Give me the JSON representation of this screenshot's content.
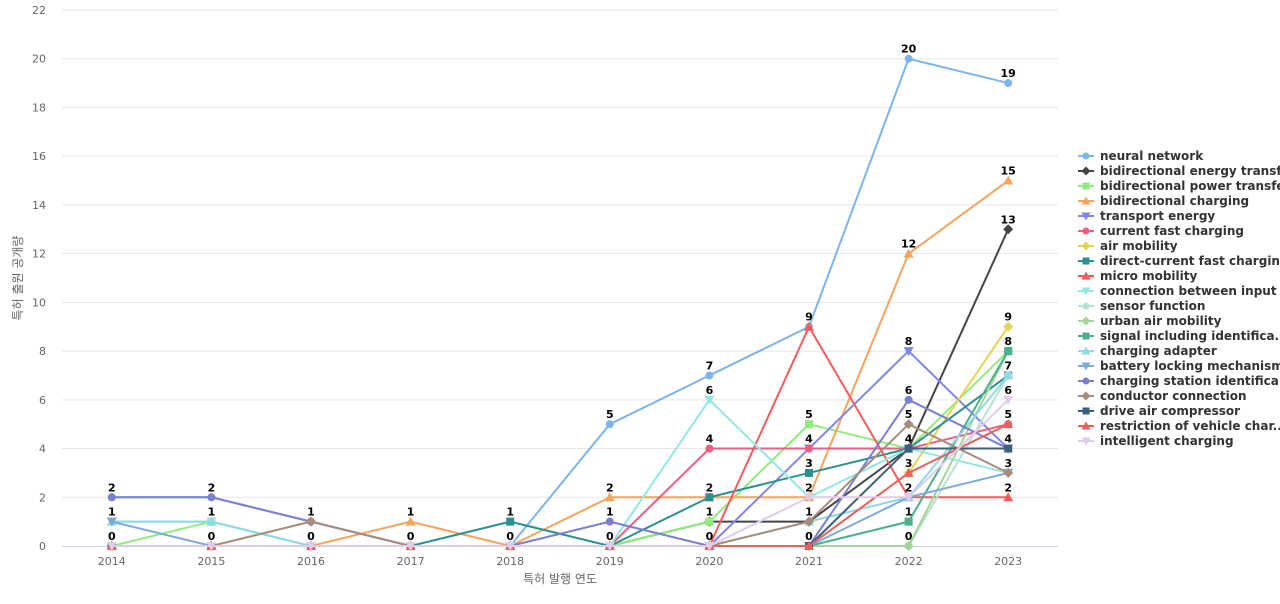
{
  "chart_data": {
    "type": "line",
    "xlabel": "특허 발행 연도",
    "ylabel": "특허 출원 공개량",
    "ylim": [
      0,
      22
    ],
    "yticks": [
      0,
      2,
      4,
      6,
      8,
      10,
      12,
      14,
      16,
      18,
      20,
      22
    ],
    "grid": true,
    "legend_position": "right",
    "categories": [
      "2014",
      "2015",
      "2016",
      "2017",
      "2018",
      "2019",
      "2020",
      "2021",
      "2022",
      "2023"
    ],
    "series": [
      {
        "name": "neural network",
        "color": "#7cb5ec",
        "marker": "circle",
        "values": [
          2,
          2,
          1,
          0,
          0,
          5,
          7,
          9,
          20,
          19
        ]
      },
      {
        "name": "bidirectional energy transfer",
        "color": "#434348",
        "marker": "diamond",
        "values": [
          0,
          0,
          0,
          0,
          0,
          0,
          1,
          1,
          4,
          13
        ]
      },
      {
        "name": "bidirectional power transfer",
        "color": "#90ed7d",
        "marker": "square",
        "values": [
          0,
          1,
          0,
          0,
          0,
          0,
          1,
          5,
          4,
          8
        ]
      },
      {
        "name": "bidirectional charging",
        "color": "#f7a35c",
        "marker": "triangle",
        "values": [
          0,
          0,
          0,
          1,
          0,
          2,
          2,
          2,
          12,
          15
        ]
      },
      {
        "name": "transport energy",
        "color": "#8085e9",
        "marker": "triangle-down",
        "values": [
          0,
          0,
          0,
          0,
          0,
          0,
          0,
          4,
          8,
          4
        ]
      },
      {
        "name": "current fast charging",
        "color": "#f15c80",
        "marker": "circle",
        "values": [
          0,
          0,
          0,
          0,
          0,
          0,
          4,
          4,
          4,
          5
        ]
      },
      {
        "name": "air mobility",
        "color": "#e4d354",
        "marker": "diamond",
        "values": [
          0,
          0,
          0,
          0,
          0,
          0,
          0,
          0,
          3,
          9
        ]
      },
      {
        "name": "direct-current fast charging",
        "color": "#2b908f",
        "marker": "square",
        "values": [
          0,
          0,
          0,
          0,
          1,
          0,
          2,
          3,
          4,
          7
        ]
      },
      {
        "name": "micro mobility",
        "color": "#f45b5b",
        "marker": "triangle",
        "values": [
          0,
          0,
          0,
          0,
          0,
          0,
          0,
          9,
          2,
          2
        ]
      },
      {
        "name": "connection between input",
        "color": "#91e8e1",
        "marker": "triangle-down",
        "values": [
          1,
          1,
          0,
          0,
          0,
          0,
          6,
          2,
          4,
          3
        ]
      },
      {
        "name": "sensor function",
        "color": "#b5e3cf",
        "marker": "circle",
        "values": [
          0,
          0,
          0,
          0,
          0,
          0,
          0,
          0,
          0,
          7
        ]
      },
      {
        "name": "urban air mobility",
        "color": "#a6d39a",
        "marker": "diamond",
        "values": [
          0,
          0,
          0,
          0,
          0,
          0,
          0,
          0,
          0,
          8
        ]
      },
      {
        "name": "signal including identifica...",
        "color": "#4cb08a",
        "marker": "square",
        "values": [
          0,
          0,
          0,
          0,
          0,
          0,
          0,
          0,
          1,
          8
        ]
      },
      {
        "name": "charging adapter",
        "color": "#8fd8e6",
        "marker": "triangle",
        "values": [
          1,
          1,
          0,
          0,
          0,
          0,
          0,
          1,
          2,
          7
        ]
      },
      {
        "name": "battery locking mechanism",
        "color": "#7fa9da",
        "marker": "triangle-down",
        "values": [
          1,
          0,
          0,
          0,
          0,
          0,
          0,
          0,
          2,
          3
        ]
      },
      {
        "name": "charging station identifica...",
        "color": "#7b7fd1",
        "marker": "circle",
        "values": [
          2,
          2,
          1,
          0,
          0,
          1,
          0,
          0,
          6,
          4
        ]
      },
      {
        "name": "conductor connection",
        "color": "#a88c7a",
        "marker": "diamond",
        "values": [
          0,
          0,
          1,
          0,
          0,
          0,
          0,
          1,
          5,
          3
        ]
      },
      {
        "name": "drive air compressor",
        "color": "#3d5f7e",
        "marker": "square",
        "values": [
          0,
          0,
          0,
          0,
          0,
          0,
          0,
          0,
          4,
          4
        ]
      },
      {
        "name": "restriction of vehicle char...",
        "color": "#e8605f",
        "marker": "triangle",
        "values": [
          0,
          0,
          0,
          0,
          0,
          0,
          0,
          0,
          3,
          5
        ]
      },
      {
        "name": "intelligent charging",
        "color": "#e0cce9",
        "marker": "triangle-down",
        "values": [
          0,
          0,
          0,
          0,
          0,
          0,
          0,
          2,
          2,
          6
        ]
      }
    ],
    "data_labels": [
      {
        "category": "2014",
        "values": [
          2,
          1,
          0
        ]
      },
      {
        "category": "2015",
        "values": [
          2,
          1,
          0
        ]
      },
      {
        "category": "2016",
        "values": [
          1,
          0
        ]
      },
      {
        "category": "2017",
        "values": [
          1,
          0
        ]
      },
      {
        "category": "2018",
        "values": [
          1,
          0
        ]
      },
      {
        "category": "2019",
        "values": [
          5,
          2,
          1,
          0
        ]
      },
      {
        "category": "2020",
        "values": [
          7,
          6,
          4,
          2,
          1,
          0
        ]
      },
      {
        "category": "2021",
        "values": [
          9,
          5,
          4,
          3,
          2,
          1,
          0
        ]
      },
      {
        "category": "2022",
        "values": [
          20,
          12,
          8,
          6,
          5,
          4,
          3,
          2,
          1,
          0
        ]
      },
      {
        "category": "2023",
        "values": [
          19,
          15,
          13,
          9,
          8,
          7,
          6,
          5,
          4,
          3,
          2
        ]
      }
    ]
  }
}
